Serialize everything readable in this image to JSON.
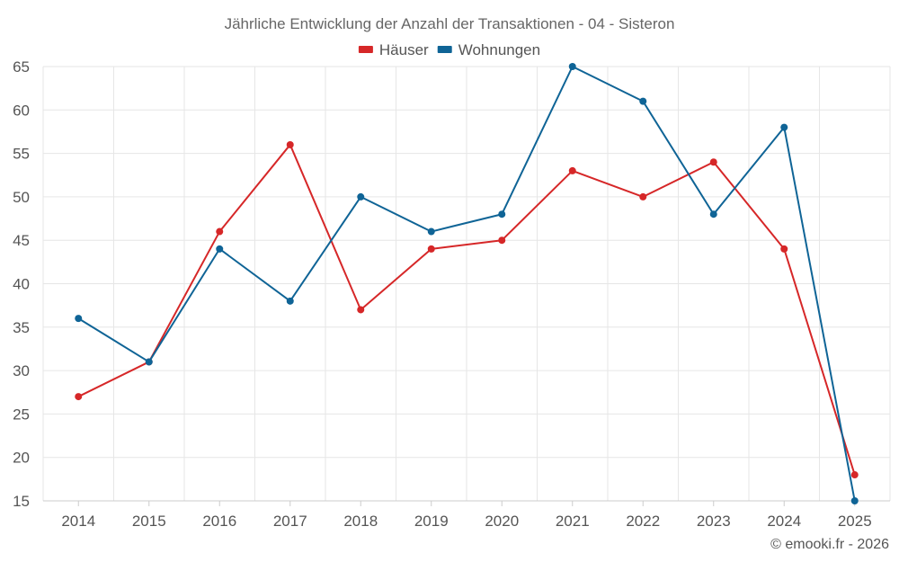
{
  "chart_data": {
    "type": "line",
    "title": "Jährliche Entwicklung der Anzahl der Transaktionen - 04 - Sisteron",
    "categories": [
      "2014",
      "2015",
      "2016",
      "2017",
      "2018",
      "2019",
      "2020",
      "2021",
      "2022",
      "2023",
      "2024",
      "2025"
    ],
    "series": [
      {
        "name": "Häuser",
        "color": "#d62728",
        "values": [
          27,
          31,
          46,
          56,
          37,
          44,
          45,
          53,
          50,
          54,
          44,
          18
        ]
      },
      {
        "name": "Wohnungen",
        "color": "#0f6496",
        "values": [
          36,
          31,
          44,
          38,
          50,
          46,
          48,
          65,
          61,
          48,
          58,
          15
        ]
      }
    ],
    "ylim": [
      15,
      65
    ],
    "yticks": [
      15,
      20,
      25,
      30,
      35,
      40,
      45,
      50,
      55,
      60,
      65
    ],
    "xlabel": "",
    "ylabel": "",
    "grid": true,
    "legend_position": "top-center"
  },
  "credit": "© emooki.fr - 2026"
}
